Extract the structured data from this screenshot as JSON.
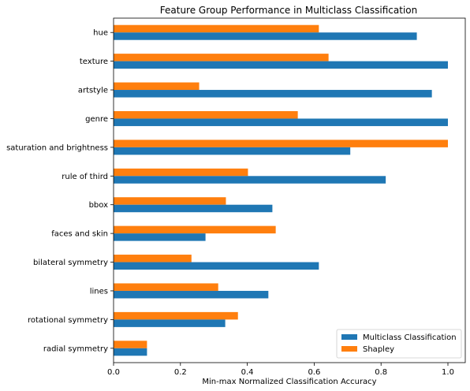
{
  "chart_data": {
    "type": "bar",
    "orientation": "horizontal",
    "title": "Feature Group Performance in Multiclass Classification",
    "xlabel": "Min-max Normalized Classification Accuracy",
    "ylabel": "",
    "xlim": [
      0,
      1.05
    ],
    "xticks": [
      "0.0",
      "0.2",
      "0.4",
      "0.6",
      "0.8",
      "1.0"
    ],
    "xtick_values": [
      0,
      0.2,
      0.4,
      0.6,
      0.8,
      1.0
    ],
    "categories": [
      "hue",
      "texture",
      "artstyle",
      "genre",
      "saturation and brightness",
      "rule of third",
      "bbox",
      "faces and skin",
      "bilateral symmetry",
      "lines",
      "rotational symmetry",
      "radial symmetry"
    ],
    "series": [
      {
        "name": "Multiclass Classification",
        "color": "#1f77b4",
        "values": [
          0.907,
          1.0,
          0.952,
          1.0,
          0.708,
          0.814,
          0.475,
          0.275,
          0.614,
          0.463,
          0.334,
          0.1
        ]
      },
      {
        "name": "Shapley",
        "color": "#ff7f0e",
        "values": [
          0.614,
          0.643,
          0.256,
          0.551,
          1.0,
          0.402,
          0.336,
          0.485,
          0.233,
          0.313,
          0.372,
          0.1
        ]
      }
    ],
    "legend_position": "lower-right",
    "grid": false
  }
}
